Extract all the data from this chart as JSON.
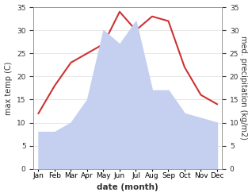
{
  "months": [
    "Jan",
    "Feb",
    "Mar",
    "Apr",
    "May",
    "Jun",
    "Jul",
    "Aug",
    "Sep",
    "Oct",
    "Nov",
    "Dec"
  ],
  "temperature": [
    12,
    18,
    23,
    25,
    27,
    34,
    30,
    33,
    32,
    22,
    16,
    14
  ],
  "precipitation": [
    8,
    8,
    10,
    15,
    30,
    27,
    32,
    17,
    17,
    12,
    11,
    10
  ],
  "temp_color": "#cc3333",
  "precip_fill_color": "#c5d0f0",
  "ylim": [
    0,
    35
  ],
  "yticks": [
    0,
    5,
    10,
    15,
    20,
    25,
    30,
    35
  ],
  "ylabel_left": "max temp (C)",
  "ylabel_right": "med. precipitation (kg/m2)",
  "xlabel": "date (month)",
  "bg_color": "#ffffff",
  "spine_color": "#999999",
  "text_color": "#333333"
}
